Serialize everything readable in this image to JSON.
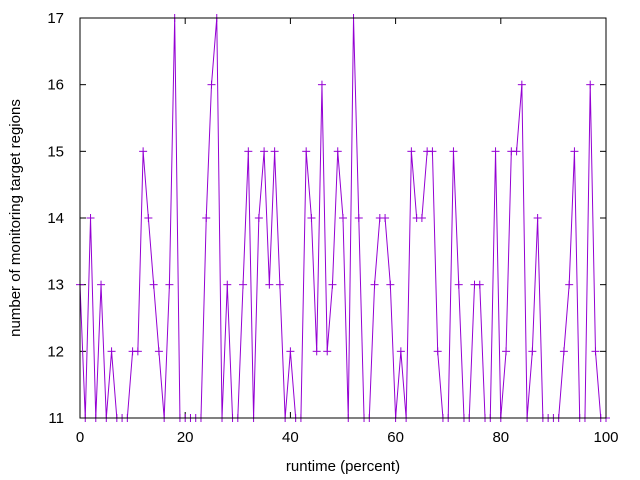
{
  "chart_data": {
    "type": "line",
    "title": "",
    "xlabel": "runtime (percent)",
    "ylabel": "number of monitoring target regions",
    "xlim": [
      0,
      100
    ],
    "ylim": [
      11,
      17
    ],
    "x_ticks": [
      0,
      20,
      40,
      60,
      80,
      100
    ],
    "y_ticks": [
      11,
      12,
      13,
      14,
      15,
      16,
      17
    ],
    "grid": false,
    "legend": "none",
    "series": [
      {
        "color": "#9400d3",
        "marker": "plus",
        "x": [
          0,
          1,
          2,
          3,
          4,
          5,
          6,
          7,
          8,
          9,
          10,
          11,
          12,
          13,
          14,
          15,
          16,
          17,
          18,
          19,
          20,
          21,
          22,
          23,
          24,
          25,
          26,
          27,
          28,
          29,
          30,
          31,
          32,
          33,
          34,
          35,
          36,
          37,
          38,
          39,
          40,
          41,
          42,
          43,
          44,
          45,
          46,
          47,
          48,
          49,
          50,
          51,
          52,
          53,
          54,
          55,
          56,
          57,
          58,
          59,
          60,
          61,
          62,
          63,
          64,
          65,
          66,
          67,
          68,
          69,
          70,
          71,
          72,
          73,
          74,
          75,
          76,
          77,
          78,
          79,
          80,
          81,
          82,
          83,
          84,
          85,
          86,
          87,
          88,
          89,
          90,
          91,
          92,
          93,
          94,
          95,
          96,
          97,
          98,
          99,
          100
        ],
        "y": [
          13,
          11,
          14,
          11,
          13,
          11,
          12,
          11,
          11,
          11,
          12,
          12,
          15,
          14,
          13,
          12,
          11,
          13,
          17,
          11,
          11,
          11,
          11,
          11,
          14,
          16,
          17,
          11,
          13,
          11,
          11,
          13,
          15,
          11,
          14,
          15,
          13,
          15,
          13,
          11,
          12,
          11,
          11,
          15,
          14,
          12,
          16,
          12,
          13,
          15,
          14,
          11,
          17,
          14,
          11,
          11,
          13,
          14,
          14,
          13,
          11,
          12,
          11,
          15,
          14,
          14,
          15,
          15,
          12,
          11,
          11,
          15,
          13,
          11,
          11,
          13,
          13,
          11,
          11,
          15,
          11,
          12,
          15,
          15,
          16,
          11,
          12,
          14,
          11,
          11,
          11,
          11,
          12,
          13,
          15,
          11,
          11,
          16,
          12,
          11,
          11
        ]
      }
    ]
  }
}
